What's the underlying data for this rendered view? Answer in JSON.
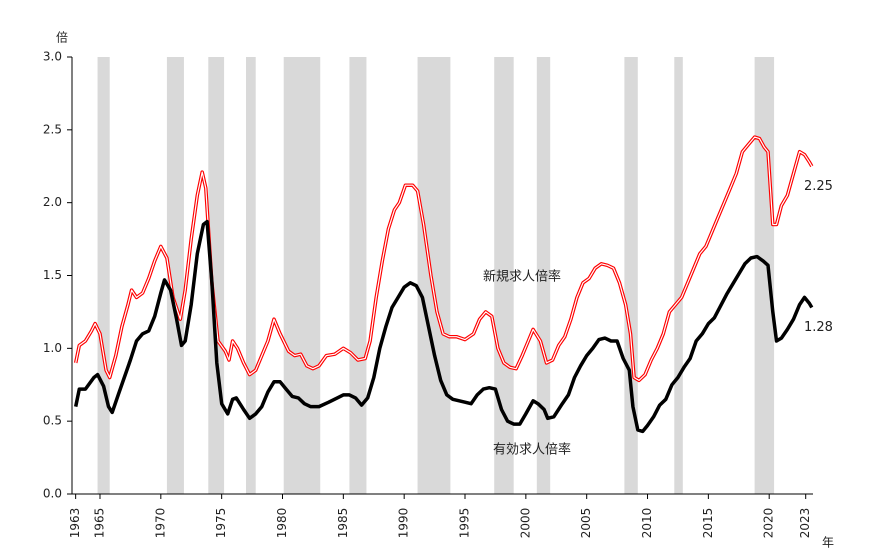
{
  "chart_data": {
    "type": "line",
    "y_label": "倍",
    "x_label": "年",
    "xlim": [
      1962.7,
      2023.6
    ],
    "xticks": [
      1963,
      1965,
      1970,
      1975,
      1980,
      1985,
      1990,
      1995,
      2000,
      2005,
      2010,
      2015,
      2020,
      2023
    ],
    "ylim": [
      0,
      3
    ],
    "yticks": [
      {
        "value": 0,
        "label": "0.0"
      },
      {
        "value": 0.5,
        "label": "0.5"
      },
      {
        "value": 1,
        "label": "1.0"
      },
      {
        "value": 1.5,
        "label": "1.5"
      },
      {
        "value": 2,
        "label": "2.0"
      },
      {
        "value": 2.5,
        "label": "2.5"
      },
      {
        "value": 3,
        "label": "3.0"
      }
    ],
    "recession_color": "#d9d9d9",
    "recessions": [
      [
        1964.8,
        1965.8
      ],
      [
        1970.5,
        1971.9
      ],
      [
        1973.9,
        1975.2
      ],
      [
        1977.0,
        1977.8
      ],
      [
        1980.1,
        1983.1
      ],
      [
        1985.5,
        1986.9
      ],
      [
        1991.1,
        1993.8
      ],
      [
        1997.4,
        1999.0
      ],
      [
        2000.9,
        2002.0
      ],
      [
        2008.1,
        2009.2
      ],
      [
        2012.2,
        2012.9
      ],
      [
        2018.8,
        2020.4
      ]
    ],
    "series": [
      {
        "name": "新規求人倍率",
        "color": "#ff0000",
        "x": [
          1963,
          1963.3,
          1963.8,
          1964.3,
          1964.6,
          1965,
          1965.5,
          1965.8,
          1966.3,
          1966.8,
          1967.3,
          1967.6,
          1968,
          1968.5,
          1969,
          1969.5,
          1970,
          1970.5,
          1971,
          1971.6,
          1972,
          1972.5,
          1973,
          1973.4,
          1973.7,
          1974.2,
          1974.7,
          1975.3,
          1975.6,
          1975.9,
          1976.3,
          1976.8,
          1977.3,
          1977.8,
          1978.3,
          1978.8,
          1979.3,
          1979.8,
          1980.5,
          1981,
          1981.5,
          1982,
          1982.5,
          1983,
          1983.6,
          1984.3,
          1985,
          1985.6,
          1986.2,
          1986.8,
          1987.2,
          1987.7,
          1988.2,
          1988.7,
          1989.2,
          1989.6,
          1990.1,
          1990.7,
          1991.1,
          1991.6,
          1992.2,
          1992.7,
          1993.2,
          1993.7,
          1994.3,
          1995,
          1995.7,
          1996.2,
          1996.7,
          1997.2,
          1997.7,
          1998.2,
          1998.7,
          1999.2,
          1999.7,
          2000.2,
          2000.6,
          2001.2,
          2001.7,
          2002.2,
          2002.7,
          2003.2,
          2003.7,
          2004.2,
          2004.7,
          2005.2,
          2005.7,
          2006.2,
          2006.7,
          2007.2,
          2007.7,
          2008.2,
          2008.6,
          2008.9,
          2009.3,
          2009.8,
          2010.3,
          2010.8,
          2011.3,
          2011.8,
          2012.3,
          2012.8,
          2013.3,
          2013.8,
          2014.3,
          2014.8,
          2015.3,
          2015.8,
          2016.3,
          2016.8,
          2017.3,
          2017.8,
          2018.3,
          2018.8,
          2019.2,
          2019.6,
          2019.9,
          2020.3,
          2020.6,
          2021,
          2021.5,
          2022,
          2022.5,
          2022.9,
          2023.3,
          2023.5
        ],
        "values": [
          0.9,
          1.02,
          1.05,
          1.12,
          1.17,
          1.1,
          0.85,
          0.8,
          0.95,
          1.15,
          1.3,
          1.4,
          1.35,
          1.38,
          1.48,
          1.6,
          1.7,
          1.62,
          1.35,
          1.2,
          1.4,
          1.75,
          2.05,
          2.21,
          2.1,
          1.45,
          1.05,
          0.98,
          0.92,
          1.05,
          1.0,
          0.9,
          0.82,
          0.85,
          0.95,
          1.05,
          1.2,
          1.1,
          0.98,
          0.95,
          0.96,
          0.88,
          0.86,
          0.88,
          0.95,
          0.96,
          1.0,
          0.97,
          0.92,
          0.93,
          1.05,
          1.35,
          1.6,
          1.82,
          1.95,
          2.0,
          2.12,
          2.12,
          2.08,
          1.85,
          1.5,
          1.25,
          1.1,
          1.08,
          1.08,
          1.06,
          1.1,
          1.2,
          1.25,
          1.22,
          1.0,
          0.9,
          0.87,
          0.86,
          0.95,
          1.05,
          1.13,
          1.05,
          0.9,
          0.92,
          1.02,
          1.08,
          1.2,
          1.35,
          1.45,
          1.48,
          1.55,
          1.58,
          1.57,
          1.55,
          1.45,
          1.3,
          1.1,
          0.8,
          0.78,
          0.82,
          0.92,
          1.0,
          1.1,
          1.25,
          1.3,
          1.35,
          1.45,
          1.55,
          1.65,
          1.7,
          1.8,
          1.9,
          2.0,
          2.1,
          2.2,
          2.35,
          2.4,
          2.45,
          2.44,
          2.38,
          2.35,
          1.85,
          1.85,
          1.98,
          2.05,
          2.2,
          2.35,
          2.33,
          2.28,
          2.25
        ]
      },
      {
        "name": "有効求人倍率",
        "color": "#000000",
        "x": [
          1963,
          1963.3,
          1963.8,
          1964.5,
          1964.8,
          1965.3,
          1965.7,
          1966,
          1966.5,
          1967,
          1967.5,
          1968,
          1968.5,
          1969,
          1969.5,
          1970,
          1970.3,
          1970.8,
          1971.3,
          1971.7,
          1972,
          1972.5,
          1973,
          1973.5,
          1973.8,
          1974.2,
          1974.6,
          1975,
          1975.5,
          1975.9,
          1976.2,
          1976.8,
          1977.3,
          1977.8,
          1978.3,
          1978.8,
          1979.3,
          1979.8,
          1980.3,
          1980.8,
          1981.3,
          1981.8,
          1982.3,
          1983,
          1983.8,
          1984.5,
          1985,
          1985.5,
          1986,
          1986.5,
          1987,
          1987.5,
          1988,
          1988.5,
          1989,
          1989.5,
          1990,
          1990.5,
          1991,
          1991.5,
          1992,
          1992.5,
          1993,
          1993.5,
          1994,
          1995,
          1995.5,
          1996,
          1996.5,
          1997,
          1997.5,
          1998,
          1998.5,
          1999,
          1999.5,
          2000,
          2000.6,
          2001,
          2001.5,
          2001.8,
          2002.3,
          2003,
          2003.5,
          2004,
          2004.5,
          2005,
          2005.5,
          2006,
          2006.5,
          2007,
          2007.5,
          2008,
          2008.5,
          2008.8,
          2009.2,
          2009.6,
          2010,
          2010.5,
          2011,
          2011.5,
          2012,
          2012.5,
          2013,
          2013.5,
          2014,
          2014.5,
          2015,
          2015.5,
          2016,
          2016.5,
          2017,
          2017.5,
          2018,
          2018.5,
          2019,
          2019.5,
          2019.9,
          2020.3,
          2020.6,
          2021,
          2021.5,
          2022,
          2022.5,
          2022.9,
          2023.3,
          2023.5
        ],
        "values": [
          0.6,
          0.72,
          0.72,
          0.8,
          0.82,
          0.74,
          0.6,
          0.56,
          0.68,
          0.8,
          0.92,
          1.05,
          1.1,
          1.12,
          1.22,
          1.38,
          1.47,
          1.4,
          1.2,
          1.02,
          1.05,
          1.3,
          1.65,
          1.85,
          1.87,
          1.45,
          0.9,
          0.62,
          0.55,
          0.65,
          0.66,
          0.58,
          0.52,
          0.55,
          0.6,
          0.7,
          0.77,
          0.77,
          0.72,
          0.67,
          0.66,
          0.62,
          0.6,
          0.6,
          0.63,
          0.66,
          0.68,
          0.68,
          0.66,
          0.61,
          0.66,
          0.8,
          1.0,
          1.15,
          1.28,
          1.35,
          1.42,
          1.45,
          1.43,
          1.35,
          1.15,
          0.95,
          0.78,
          0.68,
          0.65,
          0.63,
          0.62,
          0.68,
          0.72,
          0.73,
          0.72,
          0.58,
          0.5,
          0.48,
          0.48,
          0.55,
          0.64,
          0.62,
          0.58,
          0.52,
          0.53,
          0.62,
          0.68,
          0.8,
          0.88,
          0.95,
          1.0,
          1.06,
          1.07,
          1.05,
          1.05,
          0.93,
          0.85,
          0.6,
          0.44,
          0.43,
          0.47,
          0.53,
          0.61,
          0.65,
          0.75,
          0.8,
          0.87,
          0.93,
          1.05,
          1.1,
          1.17,
          1.21,
          1.29,
          1.37,
          1.44,
          1.51,
          1.58,
          1.62,
          1.63,
          1.6,
          1.57,
          1.25,
          1.05,
          1.07,
          1.13,
          1.2,
          1.3,
          1.35,
          1.31,
          1.28
        ]
      }
    ]
  }
}
